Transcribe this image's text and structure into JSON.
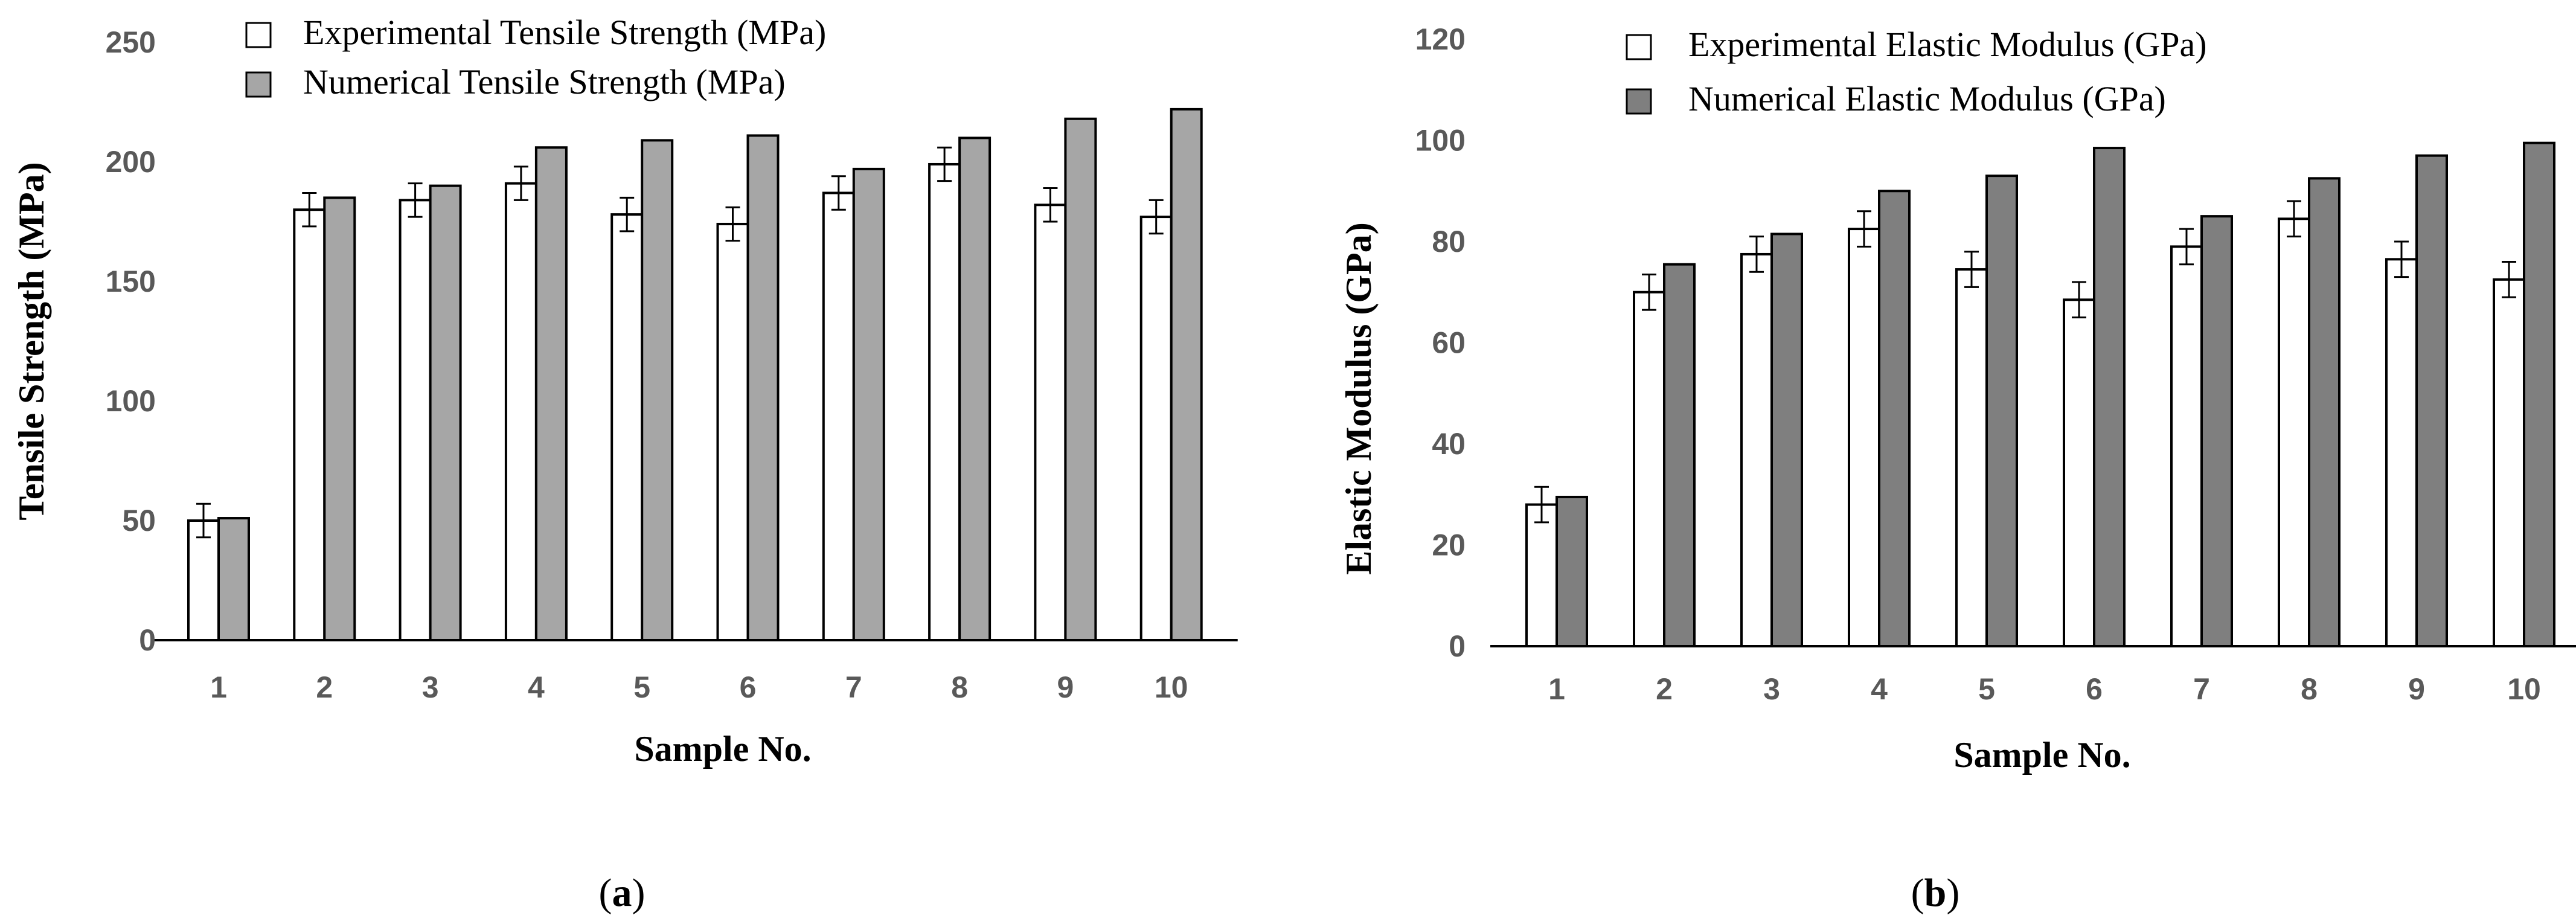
{
  "chart_data": [
    {
      "type": "bar",
      "panel_label": {
        "open": "(",
        "letter": "a",
        "close": ")"
      },
      "title": "",
      "xlabel": "Sample No.",
      "ylabel": "Tensile Strength (MPa)",
      "ylim": [
        0,
        250
      ],
      "yticks": [
        0,
        50,
        100,
        150,
        200,
        250
      ],
      "categories": [
        "1",
        "2",
        "3",
        "4",
        "5",
        "6",
        "7",
        "8",
        "9",
        "10"
      ],
      "grid": false,
      "legend_position": "top",
      "series": [
        {
          "name": "Experimental Tensile Strength (MPa)",
          "values": [
            50,
            180,
            184,
            191,
            178,
            174,
            187,
            199,
            182,
            177
          ],
          "errors": [
            7,
            7,
            7,
            7,
            7,
            7,
            7,
            7,
            7,
            7
          ],
          "fill": "#ffffff"
        },
        {
          "name": "Numerical Tensile Strength (MPa)",
          "values": [
            51,
            185,
            190,
            206,
            209,
            211,
            197,
            210,
            218,
            222
          ],
          "fill": "#a6a6a6"
        }
      ]
    },
    {
      "type": "bar",
      "panel_label": {
        "open": "(",
        "letter": "b",
        "close": ")"
      },
      "title": "",
      "xlabel": "Sample No.",
      "ylabel": "Elastic Modulus (GPa)",
      "ylim": [
        0,
        120
      ],
      "yticks": [
        0,
        20,
        40,
        60,
        80,
        100,
        120
      ],
      "categories": [
        "1",
        "2",
        "3",
        "4",
        "5",
        "6",
        "7",
        "8",
        "9",
        "10"
      ],
      "grid": false,
      "legend_position": "top",
      "series": [
        {
          "name": "Experimental Elastic Modulus (GPa)",
          "values": [
            28,
            70,
            77.5,
            82.5,
            74.5,
            68.5,
            79,
            84.5,
            76.5,
            72.5
          ],
          "errors": [
            3.5,
            3.5,
            3.5,
            3.5,
            3.5,
            3.5,
            3.5,
            3.5,
            3.5,
            3.5
          ],
          "fill": "#ffffff"
        },
        {
          "name": "Numerical Elastic Modulus (GPa)",
          "values": [
            29.5,
            75.5,
            81.5,
            90,
            93,
            98.5,
            85,
            92.5,
            97,
            99.5
          ],
          "fill": "#7f7f7f"
        }
      ]
    }
  ]
}
